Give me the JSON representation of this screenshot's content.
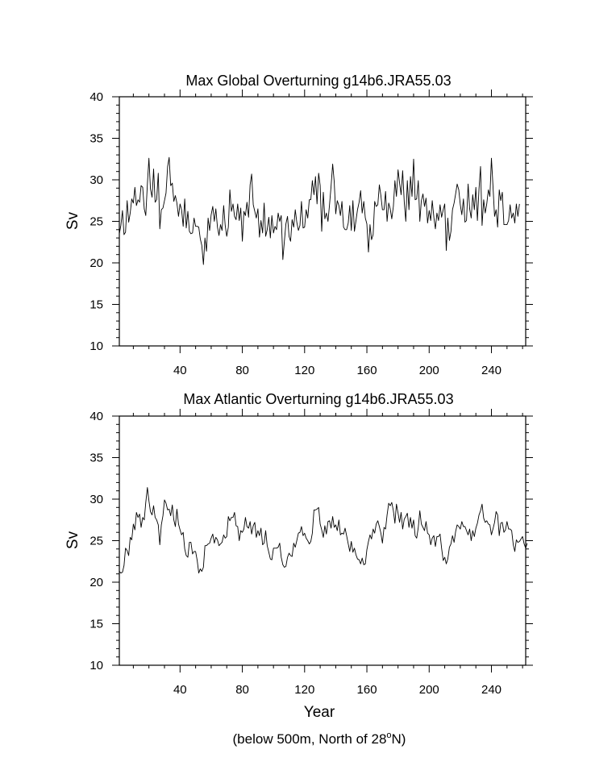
{
  "chart_data": [
    {
      "type": "line",
      "title": "Max Global Overturning g14b6.JRA55.03",
      "ylabel": "Sv",
      "xlim": [
        1,
        262
      ],
      "ylim": [
        10,
        40
      ],
      "xticks": [
        40,
        80,
        120,
        160,
        200,
        240
      ],
      "yticks": [
        10,
        15,
        20,
        25,
        30,
        35,
        40
      ],
      "series": [
        {
          "x_start": 1,
          "x_step": 1,
          "values": [
            23.5,
            24.5,
            26.3,
            23.4,
            23.7,
            27.5,
            24.9,
            26.0,
            27.7,
            27.2,
            29.1,
            26.9,
            27.6,
            27.3,
            29.3,
            29.1,
            26.5,
            25.7,
            29.5,
            32.6,
            28.9,
            27.9,
            31.3,
            27.3,
            27.6,
            30.8,
            24.1,
            26.4,
            26.6,
            27.5,
            28.4,
            31.6,
            32.7,
            29.3,
            29.6,
            27.4,
            28.1,
            27.2,
            25.6,
            27.1,
            26.4,
            24.4,
            27.7,
            24.2,
            26.2,
            23.8,
            23.5,
            23.6,
            25.4,
            24.4,
            24.4,
            24.3,
            22.9,
            22.1,
            19.8,
            23.0,
            21.4,
            25.4,
            23.9,
            25.8,
            26.8,
            25.0,
            26.5,
            24.3,
            23.3,
            24.6,
            23.9,
            26.9,
            24.5,
            23.2,
            24.3,
            28.8,
            26.2,
            27.1,
            25.6,
            25.2,
            27.1,
            25.1,
            26.6,
            22.6,
            26.2,
            25.7,
            27.3,
            25.5,
            29.4,
            30.7,
            27.0,
            26.2,
            25.4,
            26.5,
            23.1,
            25.1,
            23.6,
            27.2,
            23.2,
            24.0,
            25.5,
            23.0,
            25.7,
            23.6,
            24.4,
            24.0,
            26.0,
            25.0,
            25.7,
            20.4,
            22.6,
            24.7,
            25.6,
            23.2,
            22.6,
            25.2,
            24.3,
            26.4,
            24.9,
            23.9,
            24.5,
            27.4,
            24.2,
            24.3,
            26.4,
            25.4,
            27.6,
            27.6,
            29.9,
            28.2,
            30.4,
            27.1,
            30.8,
            29.3,
            23.8,
            28.5,
            25.3,
            26.0,
            25.0,
            27.0,
            29.2,
            31.9,
            29.8,
            25.9,
            27.5,
            26.9,
            25.7,
            27.4,
            24.3,
            24.0,
            24.0,
            24.8,
            26.9,
            23.9,
            27.5,
            23.8,
            25.1,
            26.4,
            27.3,
            28.7,
            26.0,
            27.4,
            25.4,
            24.7,
            21.3,
            24.6,
            22.8,
            23.4,
            27.4,
            26.8,
            27.0,
            29.4,
            28.1,
            26.4,
            26.4,
            28.6,
            25.0,
            27.2,
            26.5,
            25.3,
            26.8,
            29.9,
            28.0,
            31.2,
            29.6,
            28.2,
            31.1,
            27.3,
            25.0,
            29.9,
            26.4,
            30.4,
            28.0,
            32.5,
            27.6,
            27.7,
            29.9,
            25.0,
            27.5,
            28.3,
            26.8,
            27.8,
            24.8,
            26.3,
            25.1,
            27.5,
            25.5,
            24.1,
            26.0,
            25.1,
            27.0,
            25.5,
            26.4,
            27.1,
            21.5,
            25.4,
            22.7,
            23.8,
            26.4,
            27.2,
            28.3,
            29.5,
            28.8,
            27.0,
            25.8,
            27.7,
            24.9,
            25.1,
            29.5,
            26.5,
            25.4,
            28.2,
            26.4,
            29.1,
            25.1,
            28.9,
            31.6,
            24.5,
            27.6,
            26.0,
            27.1,
            28.8,
            28.0,
            32.6,
            29.3,
            25.6,
            26.4,
            24.3,
            28.8,
            27.5,
            28.5,
            24.6,
            24.6,
            24.6,
            25.1,
            27.0,
            25.4,
            26.0,
            24.8,
            27.1,
            25.6,
            27.1
          ]
        }
      ]
    },
    {
      "type": "line",
      "title": "Max Atlantic Overturning g14b6.JRA55.03",
      "ylabel": "Sv",
      "xlabel": "Year",
      "xlim": [
        1,
        262
      ],
      "ylim": [
        10,
        40
      ],
      "xticks": [
        40,
        80,
        120,
        160,
        200,
        240
      ],
      "yticks": [
        10,
        15,
        20,
        25,
        30,
        35,
        40
      ],
      "series": [
        {
          "x_start": 1,
          "x_step": 1,
          "values": [
            21.3,
            21.1,
            21.2,
            22.0,
            24.1,
            23.8,
            23.2,
            25.4,
            25.1,
            27.0,
            26.3,
            28.4,
            27.8,
            28.2,
            26.6,
            27.8,
            27.5,
            29.6,
            31.4,
            29.8,
            28.5,
            28.1,
            29.2,
            27.8,
            27.5,
            26.9,
            24.5,
            26.9,
            28.0,
            29.9,
            29.5,
            28.7,
            28.8,
            28.0,
            29.3,
            27.5,
            26.7,
            28.8,
            27.0,
            26.3,
            25.7,
            26.0,
            24.0,
            23.2,
            23.0,
            24.8,
            24.8,
            23.4,
            23.7,
            23.7,
            22.6,
            21.1,
            21.6,
            21.3,
            21.8,
            24.4,
            24.4,
            24.6,
            24.7,
            25.3,
            25.8,
            24.7,
            25.4,
            25.1,
            24.4,
            24.6,
            24.8,
            25.7,
            25.3,
            25.5,
            27.9,
            27.4,
            27.8,
            27.8,
            28.4,
            26.8,
            26.7,
            25.0,
            26.2,
            26.0,
            26.4,
            27.8,
            26.7,
            26.5,
            27.3,
            25.8,
            26.8,
            27.2,
            25.4,
            26.2,
            25.6,
            26.5,
            24.5,
            24.7,
            26.2,
            24.4,
            23.6,
            22.8,
            22.7,
            24.1,
            24.1,
            24.1,
            24.2,
            24.7,
            23.0,
            22.1,
            21.8,
            21.9,
            23.0,
            23.5,
            23.2,
            23.1,
            24.7,
            24.2,
            25.0,
            25.9,
            26.0,
            26.7,
            25.6,
            25.9,
            25.3,
            25.0,
            24.6,
            24.9,
            25.9,
            28.7,
            28.7,
            28.8,
            29.0,
            27.0,
            26.3,
            25.4,
            26.8,
            25.8,
            27.3,
            27.4,
            26.5,
            27.9,
            26.6,
            26.9,
            26.2,
            27.5,
            25.7,
            25.9,
            25.8,
            26.5,
            25.6,
            24.6,
            23.7,
            24.9,
            23.6,
            24.1,
            23.3,
            22.8,
            22.7,
            22.2,
            22.9,
            22.1,
            22.2,
            23.9,
            24.9,
            25.7,
            25.2,
            26.4,
            25.9,
            27.0,
            27.4,
            26.7,
            25.9,
            24.7,
            26.6,
            26.4,
            28.1,
            29.5,
            29.2,
            29.6,
            28.6,
            27.1,
            29.4,
            28.3,
            27.2,
            28.4,
            26.4,
            27.6,
            27.9,
            28.3,
            26.6,
            27.8,
            26.5,
            27.5,
            25.6,
            25.3,
            26.6,
            28.6,
            27.0,
            26.6,
            26.2,
            27.3,
            25.9,
            25.7,
            24.5,
            25.3,
            25.6,
            24.3,
            25.5,
            25.5,
            25.8,
            24.1,
            22.6,
            23.0,
            22.2,
            22.8,
            24.2,
            24.6,
            25.6,
            24.8,
            26.1,
            26.9,
            26.7,
            26.4,
            27.3,
            26.7,
            26.7,
            26.2,
            25.7,
            26.4,
            25.0,
            26.2,
            25.5,
            26.5,
            27.1,
            28.1,
            28.6,
            29.4,
            27.7,
            27.2,
            27.4,
            27.0,
            26.9,
            25.7,
            26.4,
            27.2,
            28.5,
            28.1,
            25.6,
            27.1,
            27.2,
            26.0,
            26.3,
            27.3,
            26.4,
            26.4,
            26.2,
            24.5,
            23.7,
            25.1,
            24.8,
            24.9,
            25.2,
            25.5,
            24.6,
            24.1,
            24.7
          ]
        }
      ]
    }
  ],
  "footnote_prefix": "(below 500m, North of 28",
  "footnote_sup": "o",
  "footnote_suffix": "N)"
}
